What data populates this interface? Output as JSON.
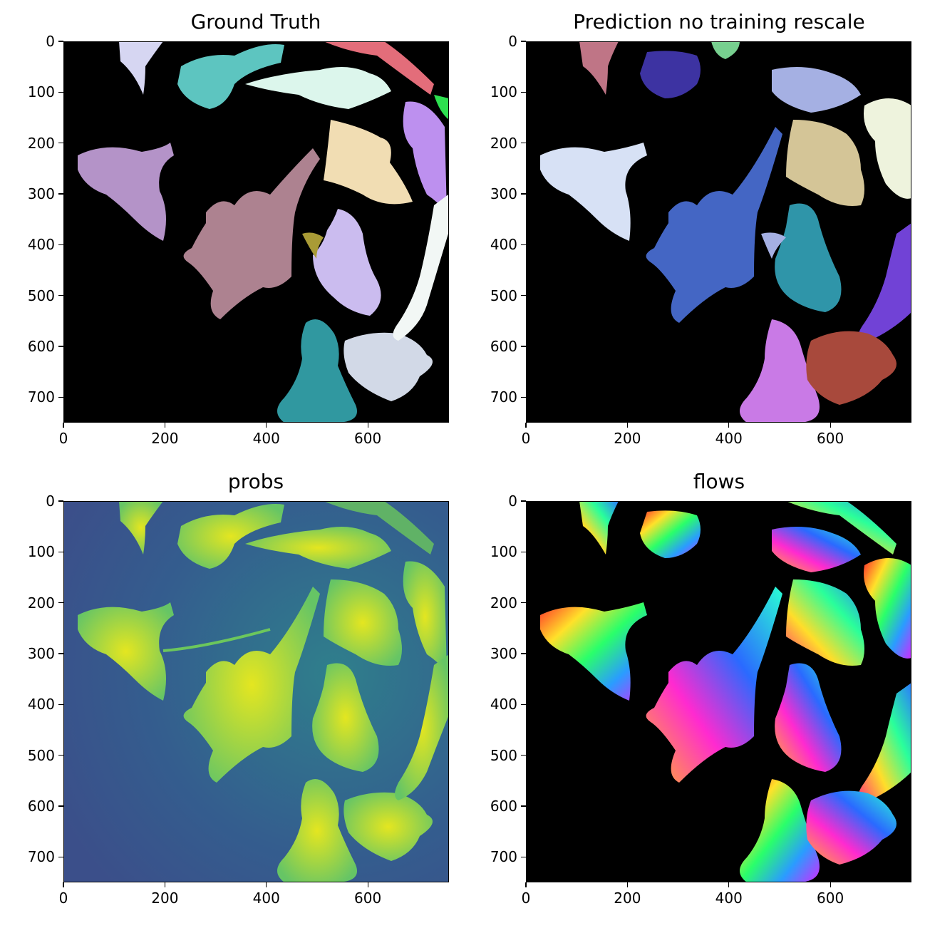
{
  "panels": [
    {
      "title": "Ground Truth"
    },
    {
      "title": "Prediction no training rescale"
    },
    {
      "title": "probs"
    },
    {
      "title": "flows"
    }
  ],
  "axes": {
    "y_ticks": [
      "0",
      "100",
      "200",
      "300",
      "400",
      "500",
      "600",
      "700"
    ],
    "x_ticks": [
      "0",
      "200",
      "400",
      "600"
    ],
    "xlim": [
      0,
      760
    ],
    "ylim": [
      750,
      0
    ]
  },
  "colors": {
    "background_mask": "#000000",
    "probs_low": "#3b5a8f",
    "probs_high": "#e4e620",
    "gt_cells": [
      "#b493c8",
      "#ad8290",
      "#f1ddb3",
      "#5dc5c0",
      "#d6d6f2",
      "#bd90ef",
      "#d2d9e7",
      "#3098a0",
      "#cbbcef",
      "#f2f7f5",
      "#a99b36",
      "#e36d7a",
      "#2de04f"
    ],
    "pred_cells": [
      "#d7e1f5",
      "#4466c4",
      "#bf7586",
      "#3d33a2",
      "#a5b0e3",
      "#d4c597",
      "#eef3dd",
      "#2f95a9",
      "#7142d6",
      "#c97ae6",
      "#a8493c",
      "#77cf8f"
    ]
  }
}
